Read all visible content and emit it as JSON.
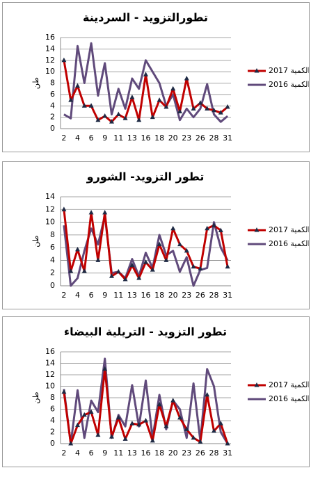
{
  "chart_data": [
    {
      "type": "line",
      "title": "تطورالتزويد - السردينة",
      "y_label": "طن",
      "categories": [
        2,
        null,
        4,
        null,
        6,
        null,
        9,
        null,
        11,
        null,
        13,
        null,
        16,
        null,
        18,
        null,
        20,
        null,
        23,
        null,
        26,
        null,
        28,
        null,
        31
      ],
      "ylim": [
        0,
        16
      ],
      "yticks": [
        0,
        2,
        4,
        6,
        8,
        10,
        12,
        14,
        16
      ],
      "series": [
        {
          "name": "الكمية 2017",
          "color": "#c00000",
          "marker_color": "#1f2a44",
          "values": [
            12,
            5,
            7.5,
            4,
            4,
            1.5,
            2.2,
            1.2,
            2.5,
            1.8,
            5.5,
            1.5,
            9.5,
            2,
            5,
            3.8,
            7,
            3,
            8.8,
            3.5,
            4.5,
            3.5,
            3.2,
            2.8,
            3.8
          ]
        },
        {
          "name": "الكمية 2016",
          "color": "#604a7b",
          "values": [
            2.5,
            1.8,
            14.5,
            8,
            15,
            5.8,
            11.5,
            2.5,
            7,
            3.5,
            8.8,
            7,
            12,
            10,
            8,
            4,
            6,
            1.5,
            3.5,
            2,
            3.5,
            7.8,
            2.5,
            1.2,
            2.2
          ]
        }
      ]
    },
    {
      "type": "line",
      "title": "تطور التزويد- الشورو",
      "y_label": "طن",
      "categories": [
        2,
        null,
        4,
        null,
        6,
        null,
        9,
        null,
        11,
        null,
        13,
        null,
        16,
        null,
        18,
        null,
        20,
        null,
        23,
        null,
        26,
        null,
        28,
        null,
        31
      ],
      "ylim": [
        0,
        14
      ],
      "yticks": [
        0,
        2,
        4,
        6,
        8,
        10,
        12,
        14
      ],
      "series": [
        {
          "name": "الكمية 2017",
          "color": "#c00000",
          "marker_color": "#1f2a44",
          "values": [
            12,
            2.3,
            5.7,
            2.3,
            11.5,
            4,
            11.5,
            1.5,
            2.2,
            1,
            3.2,
            1.2,
            3.7,
            2.5,
            6.5,
            4,
            9,
            6.5,
            5.5,
            3,
            2.7,
            9,
            9.5,
            8.7,
            3
          ]
        },
        {
          "name": "الكمية 2016",
          "color": "#604a7b",
          "values": [
            9.5,
            0,
            1.2,
            5.5,
            9,
            6.5,
            11,
            2,
            2.2,
            1.2,
            4.2,
            1.5,
            5.2,
            2.8,
            8,
            4.8,
            5.5,
            2.2,
            4.5,
            0,
            2.5,
            2.8,
            10,
            6,
            4
          ]
        }
      ]
    },
    {
      "type": "line",
      "title": "تطور التزويد - التريلية البيضاء",
      "y_label": "طن",
      "categories": [
        2,
        null,
        4,
        null,
        6,
        null,
        9,
        null,
        11,
        null,
        13,
        null,
        16,
        null,
        18,
        null,
        20,
        null,
        23,
        null,
        26,
        null,
        28,
        null,
        31
      ],
      "ylim": [
        0,
        16
      ],
      "yticks": [
        0,
        2,
        4,
        6,
        8,
        10,
        12,
        14,
        16
      ],
      "series": [
        {
          "name": "الكمية 2017",
          "color": "#c00000",
          "marker_color": "#1f2a44",
          "values": [
            9,
            0,
            3.2,
            5,
            5.5,
            1.5,
            13,
            1.2,
            4.5,
            0.8,
            3.5,
            3.3,
            4,
            0.5,
            6.8,
            3,
            7.5,
            4.5,
            2.5,
            1,
            0.3,
            8.5,
            2.2,
            3.5,
            0
          ]
        },
        {
          "name": "الكمية 2016",
          "color": "#604a7b",
          "values": [
            9.5,
            0,
            9.3,
            1,
            7.5,
            5.5,
            14.8,
            1,
            5,
            3,
            10.2,
            3,
            11,
            1,
            8.5,
            2.5,
            7.5,
            6,
            1,
            10.5,
            0.5,
            13,
            10,
            2,
            0
          ]
        }
      ]
    }
  ]
}
